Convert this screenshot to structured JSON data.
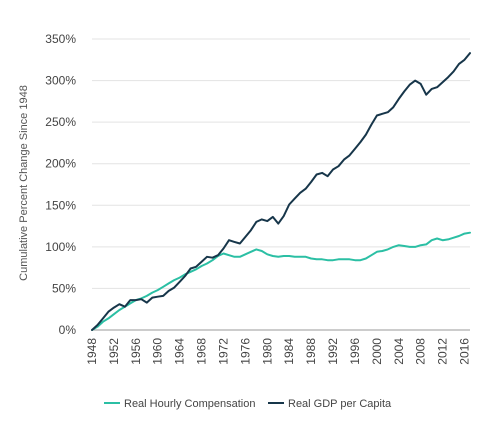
{
  "chart_data": {
    "type": "line",
    "title": "",
    "xlabel": "",
    "ylabel": "Cumulative Percent Change Since 1948",
    "xlim": [
      1948,
      2017
    ],
    "ylim": [
      0,
      350
    ],
    "x_ticks": [
      1948,
      1952,
      1956,
      1960,
      1964,
      1968,
      1972,
      1976,
      1980,
      1984,
      1988,
      1992,
      1996,
      2000,
      2004,
      2008,
      2012,
      2016
    ],
    "x_tick_labels": [
      "1948",
      "1952",
      "1956",
      "1960",
      "1964",
      "1968",
      "1972",
      "1976",
      "1980",
      "1984",
      "1988",
      "1992",
      "1996",
      "2000",
      "2004",
      "2008",
      "2012",
      "2016"
    ],
    "y_ticks": [
      0,
      50,
      100,
      150,
      200,
      250,
      300,
      350
    ],
    "y_tick_labels": [
      "0%",
      "50%",
      "100%",
      "150%",
      "200%",
      "250%",
      "300%",
      "350%"
    ],
    "grid": "horizontal",
    "legend_position": "bottom",
    "x": [
      1948,
      1949,
      1950,
      1951,
      1952,
      1953,
      1954,
      1955,
      1956,
      1957,
      1958,
      1959,
      1960,
      1961,
      1962,
      1963,
      1964,
      1965,
      1966,
      1967,
      1968,
      1969,
      1970,
      1971,
      1972,
      1973,
      1974,
      1975,
      1976,
      1977,
      1978,
      1979,
      1980,
      1981,
      1982,
      1983,
      1984,
      1985,
      1986,
      1987,
      1988,
      1989,
      1990,
      1991,
      1992,
      1993,
      1994,
      1995,
      1996,
      1997,
      1998,
      1999,
      2000,
      2001,
      2002,
      2003,
      2004,
      2005,
      2006,
      2007,
      2008,
      2009,
      2010,
      2011,
      2012,
      2013,
      2014,
      2015,
      2016,
      2017
    ],
    "series": [
      {
        "name": "Real Hourly Compensation",
        "color": "#2bbfa4",
        "values": [
          0,
          4,
          10,
          14,
          19,
          24,
          28,
          32,
          36,
          38,
          41,
          45,
          48,
          52,
          56,
          60,
          63,
          67,
          70,
          73,
          77,
          80,
          84,
          89,
          92,
          90,
          88,
          88,
          91,
          94,
          97,
          95,
          91,
          89,
          88,
          89,
          89,
          88,
          88,
          88,
          86,
          85,
          85,
          84,
          84,
          85,
          85,
          85,
          84,
          84,
          86,
          90,
          94,
          95,
          97,
          100,
          102,
          101,
          100,
          100,
          102,
          103,
          108,
          110,
          108,
          109,
          111,
          113,
          116,
          117
        ]
      },
      {
        "name": "Real GDP per Capita",
        "color": "#17364a",
        "values": [
          0,
          6,
          14,
          22,
          27,
          31,
          28,
          36,
          36,
          37,
          33,
          39,
          40,
          41,
          47,
          51,
          58,
          65,
          74,
          76,
          82,
          88,
          87,
          90,
          98,
          108,
          106,
          104,
          112,
          120,
          130,
          133,
          131,
          136,
          128,
          137,
          151,
          158,
          165,
          170,
          178,
          187,
          189,
          185,
          193,
          197,
          205,
          210,
          218,
          226,
          235,
          247,
          258,
          260,
          262,
          268,
          278,
          287,
          295,
          300,
          296,
          283,
          290,
          292,
          298,
          304,
          311,
          320,
          325,
          333
        ]
      }
    ]
  }
}
